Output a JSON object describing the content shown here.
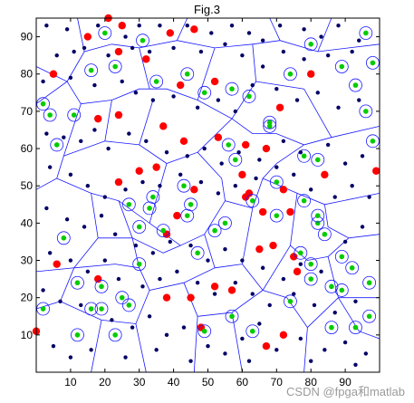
{
  "chart_data": {
    "type": "scatter",
    "title": "Fig.3",
    "xlim": [
      0,
      100
    ],
    "ylim": [
      0,
      95
    ],
    "xticks": [
      10,
      20,
      30,
      40,
      50,
      60,
      70,
      80,
      90
    ],
    "yticks": [
      10,
      20,
      30,
      40,
      50,
      60,
      70,
      80,
      90
    ],
    "grid": false,
    "colors": {
      "edge": "#1a1aff",
      "red": "#ff0000",
      "green": "#00cc00",
      "navy": "#000066",
      "circle": "#1a1aff"
    },
    "series": [
      {
        "label": "red",
        "marker": "filled-circle",
        "points": [
          [
            0,
            11
          ],
          [
            21,
            95
          ],
          [
            25,
            93
          ],
          [
            15,
            90
          ],
          [
            24,
            86
          ],
          [
            32,
            84
          ],
          [
            39,
            91
          ],
          [
            46,
            92
          ],
          [
            5,
            80
          ],
          [
            42,
            77
          ],
          [
            52,
            78
          ],
          [
            80,
            80
          ],
          [
            71,
            71
          ],
          [
            18,
            68
          ],
          [
            24,
            69
          ],
          [
            37,
            66
          ],
          [
            43,
            62
          ],
          [
            53,
            63
          ],
          [
            61,
            61
          ],
          [
            67,
            60
          ],
          [
            35,
            55
          ],
          [
            60,
            53
          ],
          [
            24,
            51
          ],
          [
            30,
            54
          ],
          [
            46,
            49
          ],
          [
            72,
            49
          ],
          [
            84,
            53
          ],
          [
            99,
            54
          ],
          [
            62,
            48
          ],
          [
            66,
            43
          ],
          [
            41,
            42
          ],
          [
            61,
            47
          ],
          [
            38,
            37
          ],
          [
            74,
            43
          ],
          [
            65,
            33
          ],
          [
            69,
            34
          ],
          [
            75,
            31
          ],
          [
            76,
            27
          ],
          [
            6,
            29
          ],
          [
            18,
            25
          ],
          [
            38,
            20
          ],
          [
            52,
            23
          ],
          [
            57,
            22
          ],
          [
            45,
            20
          ],
          [
            48,
            12
          ],
          [
            72,
            10
          ],
          [
            67,
            7
          ]
        ]
      },
      {
        "label": "green-circled",
        "marker": "green-dot-in-circle",
        "points": [
          [
            2,
            72
          ],
          [
            4,
            69
          ],
          [
            6,
            61
          ],
          [
            11,
            69
          ],
          [
            16,
            81
          ],
          [
            20,
            91
          ],
          [
            23,
            82
          ],
          [
            31,
            89
          ],
          [
            35,
            78
          ],
          [
            44,
            80
          ],
          [
            49,
            75
          ],
          [
            57,
            76
          ],
          [
            62,
            74
          ],
          [
            68,
            66
          ],
          [
            74,
            80
          ],
          [
            80,
            88
          ],
          [
            89,
            82
          ],
          [
            96,
            91
          ],
          [
            98,
            83
          ],
          [
            93,
            77
          ],
          [
            96,
            70
          ],
          [
            82,
            57
          ],
          [
            78,
            58
          ],
          [
            98,
            62
          ],
          [
            68,
            67
          ],
          [
            70,
            51
          ],
          [
            63,
            46
          ],
          [
            58,
            57
          ],
          [
            56,
            61
          ],
          [
            43,
            50
          ],
          [
            45,
            45
          ],
          [
            34,
            47
          ],
          [
            27,
            45
          ],
          [
            30,
            39
          ],
          [
            37,
            38
          ],
          [
            44,
            42
          ],
          [
            47,
            32
          ],
          [
            52,
            38
          ],
          [
            55,
            40
          ],
          [
            70,
            42
          ],
          [
            78,
            46
          ],
          [
            82,
            40
          ],
          [
            84,
            37
          ],
          [
            77,
            32
          ],
          [
            80,
            29
          ],
          [
            89,
            31
          ],
          [
            86,
            23
          ],
          [
            89,
            22
          ],
          [
            97,
            24
          ],
          [
            92,
            28
          ],
          [
            8,
            36
          ],
          [
            12,
            24
          ],
          [
            19,
            23
          ],
          [
            25,
            20
          ],
          [
            30,
            29
          ],
          [
            16,
            17
          ],
          [
            19,
            17
          ],
          [
            27,
            18
          ],
          [
            12,
            10
          ],
          [
            23,
            10
          ],
          [
            2,
            17
          ],
          [
            33,
            44
          ],
          [
            49,
            11
          ],
          [
            57,
            15
          ],
          [
            63,
            11
          ],
          [
            74,
            19
          ],
          [
            86,
            12
          ],
          [
            93,
            12
          ],
          [
            97,
            15
          ],
          [
            80,
            25
          ],
          [
            82,
            42
          ]
        ]
      },
      {
        "label": "navy-dots",
        "marker": "filled-dot",
        "points": [
          [
            3,
            93
          ],
          [
            9,
            92
          ],
          [
            11,
            86
          ],
          [
            18,
            93
          ],
          [
            26,
            90
          ],
          [
            30,
            93
          ],
          [
            36,
            93
          ],
          [
            44,
            93
          ],
          [
            51,
            91
          ],
          [
            57,
            93
          ],
          [
            62,
            91
          ],
          [
            66,
            89
          ],
          [
            71,
            93
          ],
          [
            78,
            92
          ],
          [
            83,
            90
          ],
          [
            88,
            93
          ],
          [
            94,
            89
          ],
          [
            6,
            85
          ],
          [
            14,
            87
          ],
          [
            21,
            85
          ],
          [
            28,
            87
          ],
          [
            33,
            86
          ],
          [
            40,
            87
          ],
          [
            48,
            86
          ],
          [
            55,
            88
          ],
          [
            60,
            85
          ],
          [
            66,
            82
          ],
          [
            72,
            86
          ],
          [
            78,
            84
          ],
          [
            85,
            85
          ],
          [
            92,
            86
          ],
          [
            2,
            78
          ],
          [
            10,
            79
          ],
          [
            17,
            77
          ],
          [
            25,
            78
          ],
          [
            29,
            75
          ],
          [
            34,
            73
          ],
          [
            40,
            74
          ],
          [
            47,
            71
          ],
          [
            53,
            73
          ],
          [
            58,
            70
          ],
          [
            63,
            77
          ],
          [
            70,
            76
          ],
          [
            76,
            73
          ],
          [
            82,
            75
          ],
          [
            88,
            71
          ],
          [
            94,
            73
          ],
          [
            3,
            64
          ],
          [
            8,
            63
          ],
          [
            13,
            62
          ],
          [
            17,
            65
          ],
          [
            21,
            60
          ],
          [
            27,
            64
          ],
          [
            32,
            62
          ],
          [
            38,
            59
          ],
          [
            44,
            58
          ],
          [
            49,
            60
          ],
          [
            54,
            56
          ],
          [
            59,
            59
          ],
          [
            65,
            57
          ],
          [
            72,
            62
          ],
          [
            77,
            59
          ],
          [
            85,
            61
          ],
          [
            90,
            56
          ],
          [
            95,
            58
          ],
          [
            4,
            55
          ],
          [
            10,
            53
          ],
          [
            15,
            50
          ],
          [
            20,
            47
          ],
          [
            26,
            49
          ],
          [
            31,
            51
          ],
          [
            36,
            50
          ],
          [
            42,
            53
          ],
          [
            48,
            51
          ],
          [
            53,
            48
          ],
          [
            58,
            50
          ],
          [
            64,
            52
          ],
          [
            70,
            55
          ],
          [
            75,
            53
          ],
          [
            80,
            49
          ],
          [
            87,
            47
          ],
          [
            92,
            50
          ],
          [
            97,
            47
          ],
          [
            3,
            44
          ],
          [
            9,
            41
          ],
          [
            14,
            39
          ],
          [
            19,
            42
          ],
          [
            23,
            37
          ],
          [
            29,
            34
          ],
          [
            34,
            32
          ],
          [
            39,
            35
          ],
          [
            45,
            34
          ],
          [
            50,
            30
          ],
          [
            55,
            33
          ],
          [
            60,
            30
          ],
          [
            66,
            28
          ],
          [
            72,
            25
          ],
          [
            77,
            29
          ],
          [
            83,
            27
          ],
          [
            90,
            35
          ],
          [
            95,
            39
          ],
          [
            4,
            32
          ],
          [
            10,
            30
          ],
          [
            15,
            27
          ],
          [
            20,
            30
          ],
          [
            24,
            25
          ],
          [
            31,
            23
          ],
          [
            36,
            25
          ],
          [
            41,
            27
          ],
          [
            47,
            24
          ],
          [
            52,
            21
          ],
          [
            58,
            24
          ],
          [
            63,
            21
          ],
          [
            68,
            18
          ],
          [
            75,
            21
          ],
          [
            81,
            18
          ],
          [
            87,
            16
          ],
          [
            93,
            19
          ],
          [
            2,
            22
          ],
          [
            7,
            19
          ],
          [
            13,
            18
          ],
          [
            22,
            14
          ],
          [
            28,
            12
          ],
          [
            33,
            15
          ],
          [
            38,
            10
          ],
          [
            43,
            12
          ],
          [
            50,
            7
          ],
          [
            55,
            5
          ],
          [
            60,
            9
          ],
          [
            65,
            13
          ],
          [
            70,
            6
          ],
          [
            77,
            9
          ],
          [
            84,
            6
          ],
          [
            90,
            8
          ],
          [
            96,
            5
          ],
          [
            5,
            7
          ],
          [
            10,
            4
          ],
          [
            16,
            6
          ],
          [
            26,
            4
          ],
          [
            35,
            6
          ],
          [
            45,
            3
          ],
          [
            62,
            3
          ],
          [
            80,
            3
          ],
          [
            93,
            2
          ]
        ]
      }
    ]
  },
  "watermark": "CSDN @fpga和matlab"
}
